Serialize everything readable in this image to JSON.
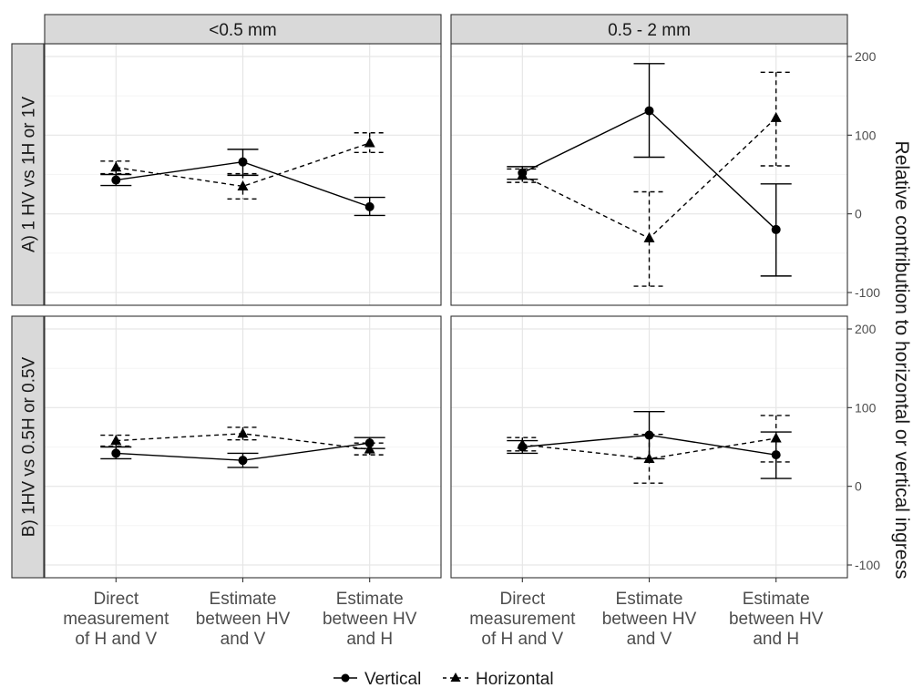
{
  "chart_data": {
    "type": "line",
    "facet_columns": [
      "<0.5 mm",
      "0.5 - 2 mm"
    ],
    "facet_rows": [
      "A) 1 HV vs 1H or 1V",
      "B) 1HV vs 0.5H or 0.5V"
    ],
    "categories": [
      [
        "Direct",
        "measurement",
        "of H and V"
      ],
      [
        "Estimate",
        "between HV",
        "and V"
      ],
      [
        "Estimate",
        "between HV",
        "and H"
      ]
    ],
    "ylabel": "Relative contribution to horizontal or vertical ingress",
    "ylim": [
      -100,
      200
    ],
    "yticks": [
      "200",
      "100",
      "0",
      "-100"
    ],
    "y_axis_side": "right",
    "grid": true,
    "legend": {
      "position": "bottom",
      "entries": [
        "Vertical",
        "Horizontal"
      ]
    },
    "series": [
      {
        "name": "Vertical",
        "marker": "circle",
        "line": "solid"
      },
      {
        "name": "Horizontal",
        "marker": "triangle",
        "line": "dashed"
      }
    ],
    "panels": [
      {
        "row": 0,
        "col": 0,
        "Vertical": [
          {
            "y": 43,
            "lo": 36,
            "hi": 50
          },
          {
            "y": 66,
            "lo": 49,
            "hi": 82
          },
          {
            "y": 9,
            "lo": -2,
            "hi": 21
          }
        ],
        "Horizontal": [
          {
            "y": 59,
            "lo": 51,
            "hi": 67
          },
          {
            "y": 35,
            "lo": 19,
            "hi": 51
          },
          {
            "y": 90,
            "lo": 78,
            "hi": 103
          }
        ]
      },
      {
        "row": 0,
        "col": 1,
        "Vertical": [
          {
            "y": 52,
            "lo": 44,
            "hi": 60
          },
          {
            "y": 131,
            "lo": 72,
            "hi": 191
          },
          {
            "y": -20,
            "lo": -79,
            "hi": 38
          }
        ],
        "Horizontal": [
          {
            "y": 49,
            "lo": 40,
            "hi": 57
          },
          {
            "y": -31,
            "lo": -92,
            "hi": 28
          },
          {
            "y": 122,
            "lo": 61,
            "hi": 180
          }
        ]
      },
      {
        "row": 1,
        "col": 0,
        "Vertical": [
          {
            "y": 42,
            "lo": 35,
            "hi": 50
          },
          {
            "y": 33,
            "lo": 24,
            "hi": 42
          },
          {
            "y": 55,
            "lo": 48,
            "hi": 62
          }
        ],
        "Horizontal": [
          {
            "y": 58,
            "lo": 51,
            "hi": 65
          },
          {
            "y": 67,
            "lo": 59,
            "hi": 75
          },
          {
            "y": 47,
            "lo": 40,
            "hi": 55
          }
        ]
      },
      {
        "row": 1,
        "col": 1,
        "Vertical": [
          {
            "y": 50,
            "lo": 42,
            "hi": 58
          },
          {
            "y": 65,
            "lo": 35,
            "hi": 95
          },
          {
            "y": 40,
            "lo": 10,
            "hi": 69
          }
        ],
        "Horizontal": [
          {
            "y": 53,
            "lo": 45,
            "hi": 62
          },
          {
            "y": 35,
            "lo": 4,
            "hi": 66
          },
          {
            "y": 61,
            "lo": 31,
            "hi": 90
          }
        ]
      }
    ]
  }
}
